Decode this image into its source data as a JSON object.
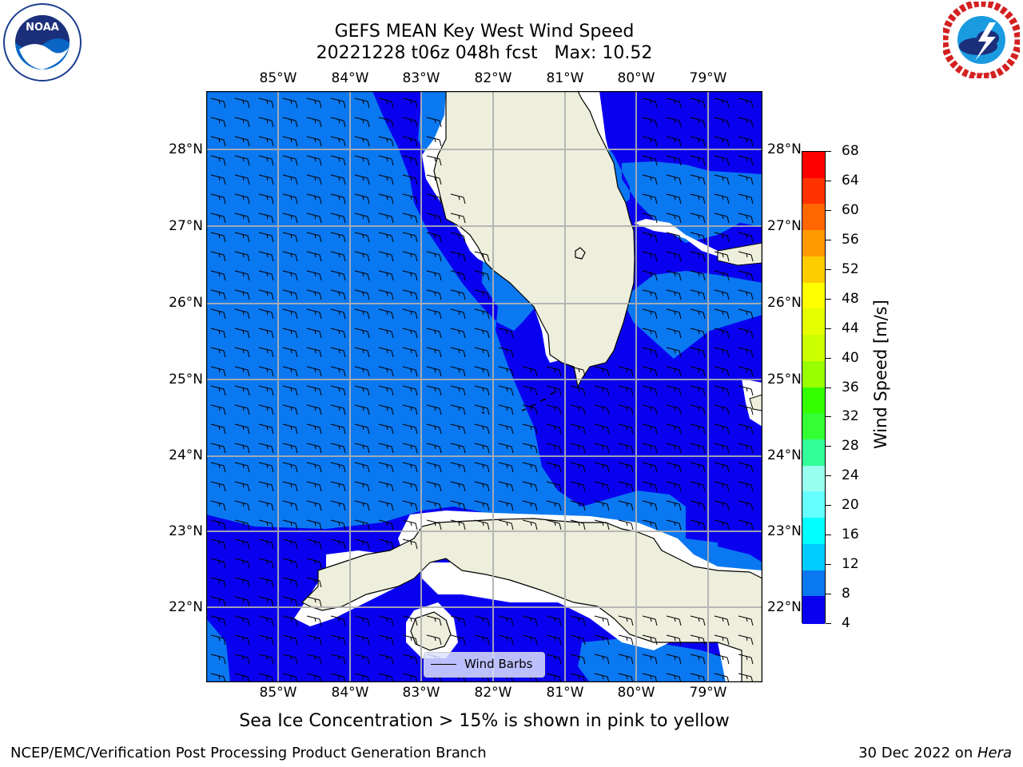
{
  "header": {
    "title_line1": "GEFS MEAN Key West Wind Speed",
    "title_line2": "20221228 t06z 048h fcst   Max: 10.52"
  },
  "logos": {
    "left": {
      "icon": "noaa-logo",
      "text": "NOAA",
      "ring_text": "NATIONAL OCEANIC AND ATMOSPHERIC ADMINISTRATION · U.S. DEPARTMENT OF COMMERCE"
    },
    "right": {
      "icon": "nws-logo",
      "ring_text": "NATIONAL WEATHER SERVICE"
    }
  },
  "map": {
    "lon_labels": [
      "85°W",
      "84°W",
      "83°W",
      "82°W",
      "81°W",
      "80°W",
      "79°W"
    ],
    "lat_labels": [
      "28°N",
      "27°N",
      "26°N",
      "25°N",
      "24°N",
      "23°N",
      "22°N"
    ],
    "legend_label": "Wind Barbs",
    "colors": {
      "land": "#eeeedc",
      "speed_4_8": "#0a00f0",
      "speed_8_12": "#0a78f0",
      "grid": "#b0b0b0"
    }
  },
  "colorbar": {
    "label": "Wind Speed [m/s]",
    "ticks": [
      "68",
      "64",
      "60",
      "56",
      "52",
      "48",
      "44",
      "40",
      "36",
      "32",
      "28",
      "24",
      "20",
      "16",
      "12",
      "8",
      "4"
    ],
    "colors": [
      "#ff0000",
      "#ff3300",
      "#ff6600",
      "#ff9900",
      "#ffcc00",
      "#ffff00",
      "#e6ff00",
      "#ccff00",
      "#99ff00",
      "#33ff00",
      "#33ff33",
      "#33ff99",
      "#99ffee",
      "#66ffff",
      "#00ffff",
      "#00ccff",
      "#0a78f0",
      "#0a00f0"
    ]
  },
  "subtitle": "Sea Ice Concentration > 15% is shown in pink to yellow",
  "footer": {
    "left": "NCEP/EMC/Verification Post Processing Product Generation Branch",
    "right_prefix": "30 Dec 2022 on ",
    "right_italic": "Hera"
  }
}
